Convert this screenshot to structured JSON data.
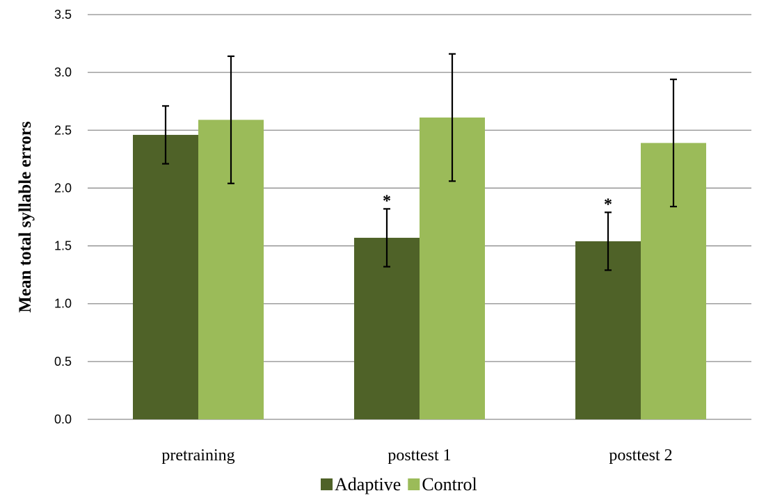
{
  "chart_data": {
    "type": "bar",
    "title": "",
    "xlabel": "",
    "ylabel": "Mean total syllable errors",
    "ylim": [
      0,
      3.5
    ],
    "yticks": [
      "0.0",
      "0.5",
      "1.0",
      "1.5",
      "2.0",
      "2.5",
      "3.0",
      "3.5"
    ],
    "ytick_values": [
      0,
      0.5,
      1.0,
      1.5,
      2.0,
      2.5,
      3.0,
      3.5
    ],
    "grid": true,
    "legend_position": "bottom",
    "categories": [
      "pretraining",
      "posttest 1",
      "posttest 2"
    ],
    "series": [
      {
        "name": "Adaptive",
        "color": "#4f6228",
        "values": [
          2.46,
          1.57,
          1.54
        ],
        "error": [
          0.25,
          0.25,
          0.25
        ],
        "annotations": [
          "",
          "*",
          "*"
        ]
      },
      {
        "name": "Control",
        "color": "#9bbb59",
        "values": [
          2.59,
          2.61,
          2.39
        ],
        "error": [
          0.55,
          0.55,
          0.55
        ],
        "annotations": [
          "",
          "",
          ""
        ]
      }
    ]
  }
}
